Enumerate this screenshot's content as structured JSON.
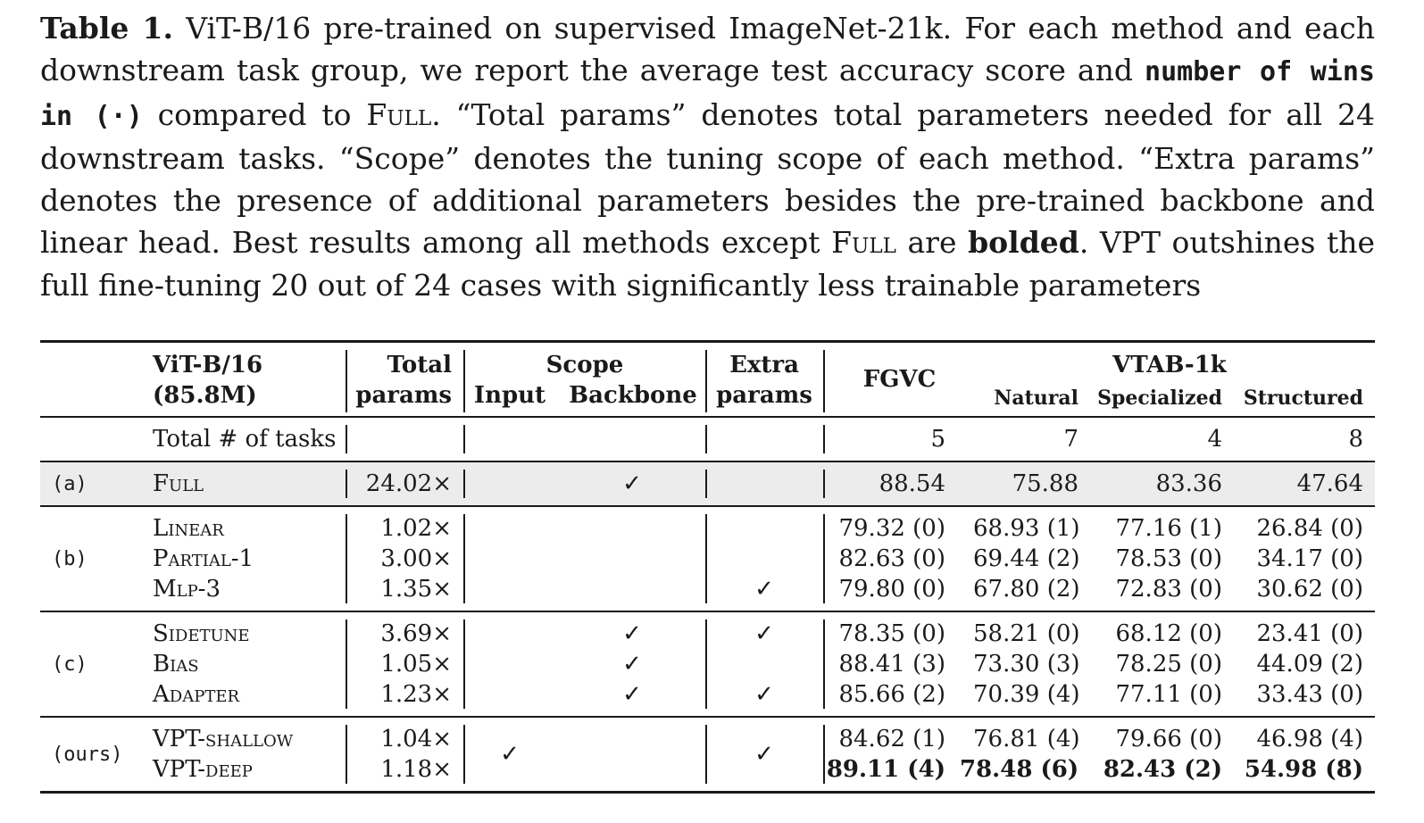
{
  "caption": {
    "label": "Table 1.",
    "part1": "ViT-B/16 pre-trained on supervised ImageNet-21k. For each method and each downstream task group, we report the average test accuracy score and",
    "mono": "number of wins in (·)",
    "part2": "compared to",
    "full_sc": "Full",
    "part3": ". “Total params” denotes total parameters needed for all 24 downstream tasks. “Scope” denotes the tuning scope of each method. “Extra params” denotes the presence of additional parameters besides the pre-trained backbone and linear head. Best results among all methods except",
    "full_sc2": "Full",
    "part4": "are",
    "bolded": "bolded",
    "part5": ". VPT outshines the full fine-tuning 20 out of 24 cases with significantly less trainable parameters"
  },
  "header": {
    "model": "ViT-B/16",
    "model_params": "(85.8M)",
    "total": "Total",
    "params": "params",
    "scope": "Scope",
    "input": "Input",
    "backbone": "Backbone",
    "extra": "Extra",
    "extra_params": "params",
    "fgvc": "FGVC",
    "vtab": "VTAB-1k",
    "natural": "Natural",
    "specialized": "Specialized",
    "structured": "Structured"
  },
  "tasks_row": {
    "label": "Total # of tasks",
    "fgvc": "5",
    "natural": "7",
    "specialized": "4",
    "structured": "8"
  },
  "check": "✓",
  "groups": {
    "a": "(a)",
    "b": "(b)",
    "c": "(c)",
    "ours": "(ours)"
  },
  "rows": [
    {
      "method": "Full",
      "params": "24.02×",
      "fgvc": "88.54",
      "natural": "75.88",
      "specialized": "83.36",
      "structured": "47.64"
    },
    {
      "method": "Linear",
      "params": "1.02×",
      "fgvc": "79.32 (0)",
      "natural": "68.93 (1)",
      "specialized": "77.16 (1)",
      "structured": "26.84 (0)"
    },
    {
      "method": "Partial-1",
      "params": "3.00×",
      "fgvc": "82.63 (0)",
      "natural": "69.44 (2)",
      "specialized": "78.53 (0)",
      "structured": "34.17 (0)"
    },
    {
      "method": "Mlp-3",
      "params": "1.35×",
      "fgvc": "79.80 (0)",
      "natural": "67.80 (2)",
      "specialized": "72.83 (0)",
      "structured": "30.62 (0)"
    },
    {
      "method": "Sidetune",
      "params": "3.69×",
      "fgvc": "78.35 (0)",
      "natural": "58.21 (0)",
      "specialized": "68.12 (0)",
      "structured": "23.41 (0)"
    },
    {
      "method": "Bias",
      "params": "1.05×",
      "fgvc": "88.41 (3)",
      "natural": "73.30 (3)",
      "specialized": "78.25 (0)",
      "structured": "44.09 (2)"
    },
    {
      "method": "Adapter",
      "params": "1.23×",
      "fgvc": "85.66 (2)",
      "natural": "70.39 (4)",
      "specialized": "77.11 (0)",
      "structured": "33.43 (0)"
    },
    {
      "method": "VPT-shallow",
      "params": "1.04×",
      "fgvc": "84.62 (1)",
      "natural": "76.81 (4)",
      "specialized": "79.66 (0)",
      "structured": "46.98 (4)"
    },
    {
      "method": "VPT-deep",
      "params": "1.18×",
      "fgvc": "89.11 (4)",
      "natural": "78.48 (6)",
      "specialized": "82.43 (2)",
      "structured": "54.98 (8)"
    }
  ]
}
